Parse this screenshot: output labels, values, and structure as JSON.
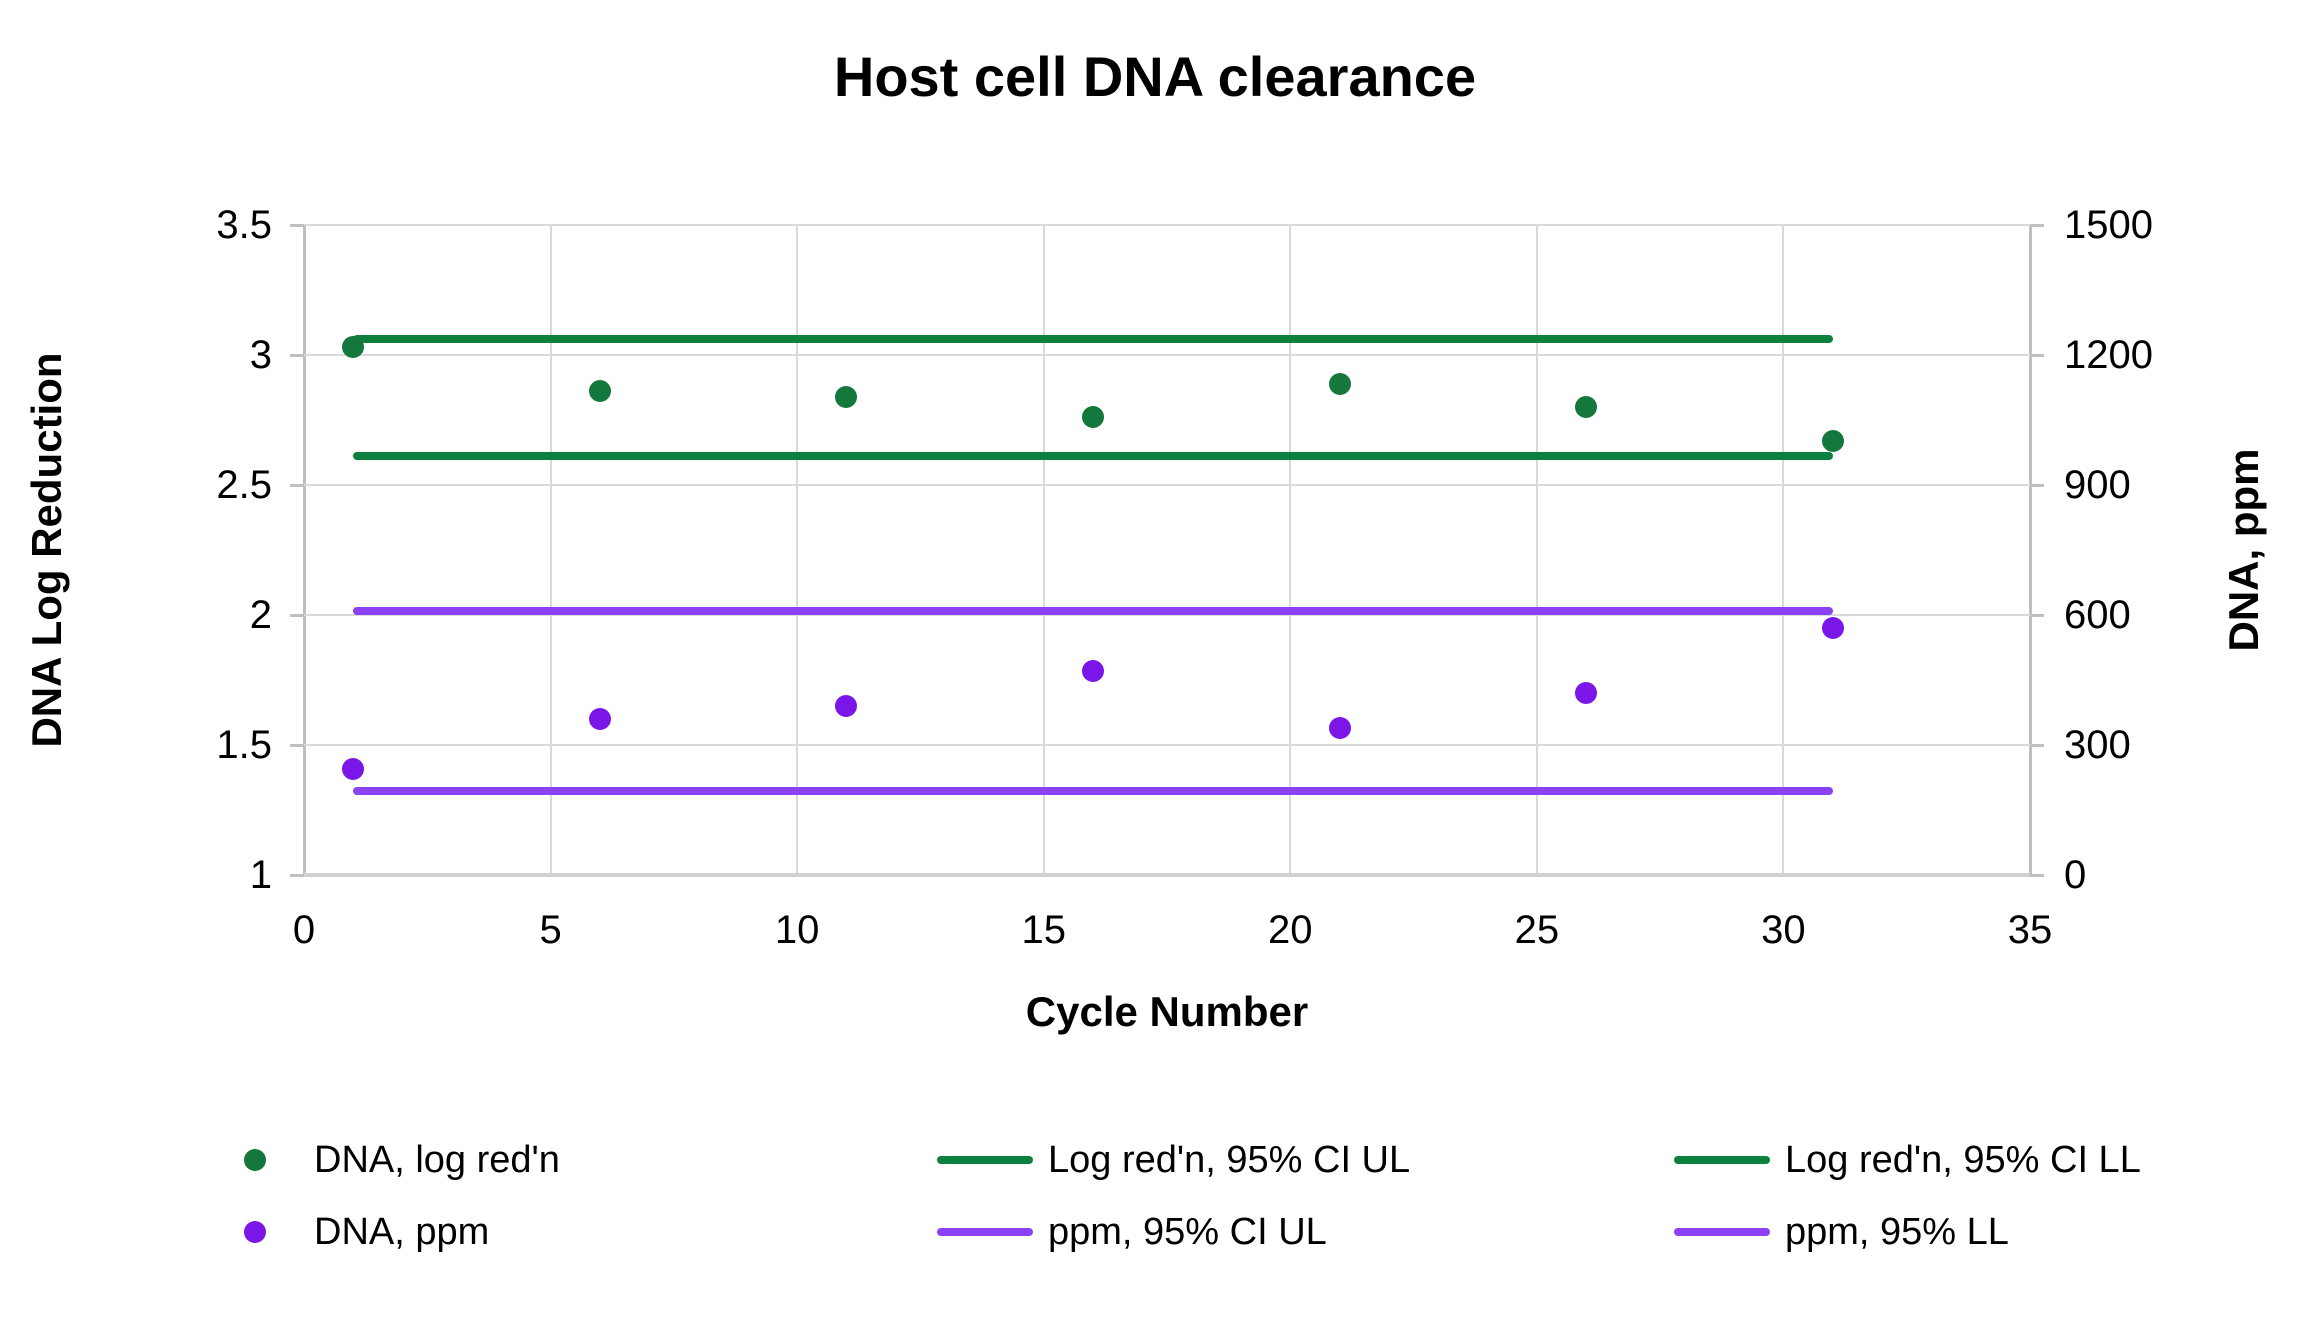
{
  "title": "Host cell DNA clearance",
  "axes": {
    "x": {
      "title": "Cycle Number",
      "min": 0,
      "max": 35,
      "ticks": [
        0,
        5,
        10,
        15,
        20,
        25,
        30,
        35
      ]
    },
    "y_left": {
      "title": "DNA Log Reduction",
      "min": 1,
      "max": 3.5,
      "ticks": [
        3.5,
        3,
        2.5,
        2,
        1.5,
        1
      ]
    },
    "y_right": {
      "title": "DNA, ppm",
      "min": 0,
      "max": 1500,
      "ticks": [
        1500,
        1200,
        900,
        600,
        300,
        0
      ]
    }
  },
  "chart_data": {
    "type": "scatter",
    "x": [
      1,
      6,
      11,
      16,
      21,
      26,
      31
    ],
    "series": [
      {
        "name": "DNA, log red'n",
        "axis": "left",
        "color": "#14783C",
        "marker": "circle",
        "values": [
          3.03,
          2.86,
          2.84,
          2.76,
          2.89,
          2.8,
          2.67
        ]
      },
      {
        "name": "DNA, ppm",
        "axis": "right",
        "color": "#7A17E8",
        "marker": "circle",
        "values": [
          245,
          360,
          390,
          470,
          340,
          420,
          570
        ]
      }
    ],
    "reference_lines": [
      {
        "name": "Log red'n, 95% CI UL",
        "axis": "left",
        "value": 3.06,
        "color": "#0E803E",
        "x_start": 1,
        "x_end": 31
      },
      {
        "name": "Log red'n, 95% CI LL",
        "axis": "left",
        "value": 2.61,
        "color": "#0E803E",
        "x_start": 1,
        "x_end": 31
      },
      {
        "name": "ppm, 95% CI UL",
        "axis": "right",
        "value": 610,
        "color": "#8B42F4",
        "x_start": 1,
        "x_end": 31
      },
      {
        "name": "ppm, 95% LL",
        "axis": "right",
        "value": 195,
        "color": "#8B42F4",
        "x_start": 1,
        "x_end": 31
      }
    ],
    "grid": true,
    "legend_position": "bottom"
  },
  "legend": {
    "rows": [
      {
        "items": [
          {
            "id": "dna-log-redn",
            "marker": "dot",
            "color": "#14783C",
            "label": "DNA, log red'n"
          },
          {
            "id": "log-redn-95-ci-ul",
            "marker": "line",
            "color": "#0E803E",
            "label": "Log red'n, 95% CI UL"
          },
          {
            "id": "log-redn-95-ci-ll",
            "marker": "line",
            "color": "#0E803E",
            "label": "Log red'n, 95% CI LL"
          }
        ]
      },
      {
        "items": [
          {
            "id": "dna-ppm",
            "marker": "dot",
            "color": "#7A17E8",
            "label": "DNA, ppm"
          },
          {
            "id": "ppm-95-ci-ul",
            "marker": "line",
            "color": "#8B42F4",
            "label": "ppm, 95% CI UL"
          },
          {
            "id": "ppm-95-ll",
            "marker": "line",
            "color": "#8B42F4",
            "label": "ppm, 95% LL"
          }
        ]
      }
    ]
  },
  "style_colors": {
    "gridline": "#D9D9D9",
    "axis_line": "#BFBFBF",
    "x_axis_line": "#D1D1D1",
    "text": "#000000"
  }
}
